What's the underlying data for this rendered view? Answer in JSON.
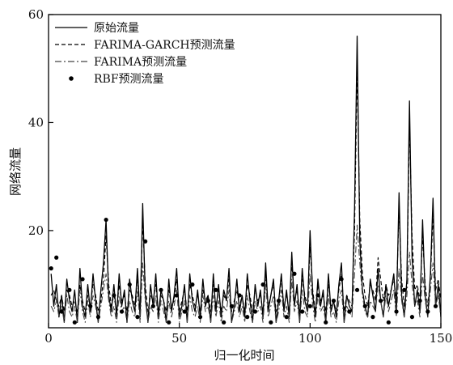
{
  "chart_data": {
    "type": "line",
    "xlabel": "归一化时间",
    "ylabel": "网络流量",
    "xlim": [
      0,
      150
    ],
    "ylim": [
      2,
      60
    ],
    "xticks": [
      0,
      50,
      100,
      150
    ],
    "yticks": [
      20,
      40,
      60
    ],
    "grid": false,
    "legend_position": "top-left",
    "series": [
      {
        "name": "原始流量",
        "style": "solid",
        "color": "#000000",
        "x": [
          1,
          2,
          3,
          4,
          5,
          6,
          7,
          8,
          9,
          10,
          11,
          12,
          13,
          14,
          15,
          16,
          17,
          18,
          19,
          20,
          21,
          22,
          23,
          24,
          25,
          26,
          27,
          28,
          29,
          30,
          31,
          32,
          33,
          34,
          35,
          36,
          37,
          38,
          39,
          40,
          41,
          42,
          43,
          44,
          45,
          46,
          47,
          48,
          49,
          50,
          51,
          52,
          53,
          54,
          55,
          56,
          57,
          58,
          59,
          60,
          61,
          62,
          63,
          64,
          65,
          66,
          67,
          68,
          69,
          70,
          71,
          72,
          73,
          74,
          75,
          76,
          77,
          78,
          79,
          80,
          81,
          82,
          83,
          84,
          85,
          86,
          87,
          88,
          89,
          90,
          91,
          92,
          93,
          94,
          95,
          96,
          97,
          98,
          99,
          100,
          101,
          102,
          103,
          104,
          105,
          106,
          107,
          108,
          109,
          110,
          111,
          112,
          113,
          114,
          115,
          116,
          117,
          118,
          119,
          120,
          121,
          122,
          123,
          124,
          125,
          126,
          127,
          128,
          129,
          130,
          131,
          132,
          133,
          134,
          135,
          136,
          137,
          138,
          139,
          140,
          141,
          142,
          143,
          144,
          145,
          146,
          147,
          148,
          149,
          150
        ],
        "values": [
          12,
          6,
          10,
          4,
          8,
          3,
          11,
          7,
          5,
          9,
          3,
          13,
          6,
          4,
          10,
          5,
          12,
          7,
          3,
          9,
          14,
          22,
          8,
          5,
          10,
          4,
          12,
          6,
          9,
          3,
          11,
          7,
          5,
          13,
          4,
          25,
          8,
          3,
          10,
          6,
          12,
          4,
          9,
          7,
          3,
          11,
          5,
          8,
          13,
          4,
          6,
          10,
          3,
          12,
          7,
          5,
          9,
          4,
          11,
          6,
          8,
          3,
          12,
          5,
          10,
          4,
          9,
          7,
          13,
          3,
          6,
          11,
          5,
          8,
          4,
          12,
          7,
          3,
          10,
          6,
          9,
          4,
          14,
          5,
          8,
          11,
          3,
          7,
          12,
          5,
          9,
          4,
          16,
          6,
          10,
          3,
          13,
          7,
          5,
          20,
          8,
          4,
          11,
          6,
          9,
          3,
          12,
          5,
          7,
          4,
          10,
          14,
          3,
          8,
          6,
          5,
          24,
          56,
          18,
          9,
          6,
          4,
          11,
          8,
          5,
          13,
          7,
          4,
          10,
          6,
          9,
          12,
          5,
          27,
          8,
          4,
          11,
          44,
          15,
          6,
          9,
          5,
          22,
          8,
          4,
          12,
          26,
          6,
          10,
          4
        ]
      },
      {
        "name": "FARIMA-GARCH预测流量",
        "style": "dashed",
        "color": "#000000",
        "x": [
          1,
          2,
          3,
          4,
          5,
          6,
          7,
          8,
          9,
          10,
          11,
          12,
          13,
          14,
          15,
          16,
          17,
          18,
          19,
          20,
          21,
          22,
          23,
          24,
          25,
          26,
          27,
          28,
          29,
          30,
          31,
          32,
          33,
          34,
          35,
          36,
          37,
          38,
          39,
          40,
          41,
          42,
          43,
          44,
          45,
          46,
          47,
          48,
          49,
          50,
          51,
          52,
          53,
          54,
          55,
          56,
          57,
          58,
          59,
          60,
          61,
          62,
          63,
          64,
          65,
          66,
          67,
          68,
          69,
          70,
          71,
          72,
          73,
          74,
          75,
          76,
          77,
          78,
          79,
          80,
          81,
          82,
          83,
          84,
          85,
          86,
          87,
          88,
          89,
          90,
          91,
          92,
          93,
          94,
          95,
          96,
          97,
          98,
          99,
          100,
          101,
          102,
          103,
          104,
          105,
          106,
          107,
          108,
          109,
          110,
          111,
          112,
          113,
          114,
          115,
          116,
          117,
          118,
          119,
          120,
          121,
          122,
          123,
          124,
          125,
          126,
          127,
          128,
          129,
          130,
          131,
          132,
          133,
          134,
          135,
          136,
          137,
          138,
          139,
          140,
          141,
          142,
          143,
          144,
          145,
          146,
          147,
          148,
          149,
          150
        ],
        "values": [
          8,
          9,
          7,
          6,
          8,
          5,
          9,
          8,
          6,
          7,
          5,
          10,
          7,
          5,
          8,
          6,
          10,
          8,
          5,
          7,
          11,
          19,
          10,
          6,
          8,
          5,
          10,
          7,
          8,
          5,
          9,
          8,
          6,
          11,
          5,
          22,
          10,
          5,
          8,
          7,
          10,
          5,
          8,
          7,
          5,
          9,
          6,
          7,
          11,
          5,
          7,
          9,
          5,
          10,
          8,
          6,
          8,
          5,
          9,
          7,
          8,
          5,
          10,
          6,
          9,
          5,
          8,
          7,
          11,
          5,
          7,
          9,
          6,
          8,
          5,
          10,
          8,
          5,
          9,
          7,
          8,
          5,
          12,
          6,
          8,
          10,
          5,
          7,
          11,
          6,
          8,
          5,
          14,
          7,
          9,
          5,
          11,
          8,
          6,
          17,
          9,
          5,
          10,
          7,
          8,
          5,
          10,
          6,
          7,
          5,
          9,
          12,
          5,
          8,
          7,
          6,
          20,
          50,
          22,
          12,
          8,
          6,
          10,
          9,
          7,
          15,
          11,
          7,
          10,
          8,
          9,
          11,
          7,
          24,
          11,
          6,
          10,
          40,
          19,
          9,
          10,
          7,
          19,
          10,
          6,
          11,
          23,
          9,
          11,
          7
        ]
      },
      {
        "name": "FARIMA预测流量",
        "style": "dashdot",
        "color": "#444444",
        "x": [
          1,
          2,
          3,
          4,
          5,
          6,
          7,
          8,
          9,
          10,
          11,
          12,
          13,
          14,
          15,
          16,
          17,
          18,
          19,
          20,
          21,
          22,
          23,
          24,
          25,
          26,
          27,
          28,
          29,
          30,
          31,
          32,
          33,
          34,
          35,
          36,
          37,
          38,
          39,
          40,
          41,
          42,
          43,
          44,
          45,
          46,
          47,
          48,
          49,
          50,
          51,
          52,
          53,
          54,
          55,
          56,
          57,
          58,
          59,
          60,
          61,
          62,
          63,
          64,
          65,
          66,
          67,
          68,
          69,
          70,
          71,
          72,
          73,
          74,
          75,
          76,
          77,
          78,
          79,
          80,
          81,
          82,
          83,
          84,
          85,
          86,
          87,
          88,
          89,
          90,
          91,
          92,
          93,
          94,
          95,
          96,
          97,
          98,
          99,
          100,
          101,
          102,
          103,
          104,
          105,
          106,
          107,
          108,
          109,
          110,
          111,
          112,
          113,
          114,
          115,
          116,
          117,
          118,
          119,
          120,
          121,
          122,
          123,
          124,
          125,
          126,
          127,
          128,
          129,
          130,
          131,
          132,
          133,
          134,
          135,
          136,
          137,
          138,
          139,
          140,
          141,
          142,
          143,
          144,
          145,
          146,
          147,
          148,
          149,
          150
        ],
        "values": [
          6,
          5,
          7,
          4,
          6,
          3,
          8,
          5,
          4,
          6,
          3,
          9,
          5,
          3,
          7,
          4,
          8,
          6,
          3,
          6,
          9,
          12,
          7,
          4,
          6,
          3,
          8,
          5,
          6,
          3,
          7,
          5,
          4,
          9,
          3,
          14,
          7,
          3,
          6,
          5,
          8,
          3,
          7,
          5,
          3,
          7,
          4,
          6,
          9,
          3,
          5,
          7,
          3,
          8,
          5,
          4,
          6,
          3,
          8,
          5,
          6,
          3,
          8,
          4,
          7,
          3,
          6,
          5,
          9,
          3,
          5,
          7,
          4,
          6,
          3,
          8,
          5,
          3,
          7,
          5,
          6,
          3,
          10,
          4,
          6,
          8,
          3,
          5,
          9,
          4,
          6,
          3,
          11,
          5,
          7,
          3,
          9,
          5,
          4,
          12,
          6,
          3,
          8,
          5,
          6,
          3,
          8,
          4,
          5,
          3,
          7,
          9,
          3,
          6,
          5,
          4,
          12,
          21,
          14,
          8,
          5,
          4,
          7,
          6,
          5,
          10,
          7,
          4,
          8,
          5,
          7,
          9,
          4,
          13,
          7,
          4,
          8,
          16,
          10,
          6,
          7,
          4,
          12,
          7,
          4,
          9,
          14,
          6,
          8,
          4
        ]
      },
      {
        "name": "RBF预测流量",
        "style": "dots",
        "color": "#000000",
        "x": [
          1,
          3,
          5,
          8,
          10,
          13,
          16,
          19,
          22,
          25,
          28,
          31,
          34,
          37,
          40,
          43,
          46,
          49,
          52,
          55,
          58,
          61,
          64,
          67,
          70,
          73,
          76,
          79,
          82,
          85,
          88,
          91,
          94,
          97,
          100,
          103,
          106,
          109,
          112,
          115,
          118,
          121,
          124,
          127,
          130,
          133,
          136,
          139,
          142,
          145,
          148
        ],
        "values": [
          13,
          15,
          5,
          9,
          3,
          11,
          6,
          4,
          22,
          8,
          5,
          10,
          4,
          18,
          6,
          9,
          3,
          8,
          5,
          10,
          4,
          7,
          9,
          3,
          6,
          8,
          4,
          5,
          10,
          3,
          7,
          4,
          12,
          5,
          6,
          8,
          3,
          7,
          11,
          5,
          9,
          6,
          4,
          7,
          3,
          5,
          9,
          4,
          7,
          5,
          6
        ]
      }
    ]
  }
}
